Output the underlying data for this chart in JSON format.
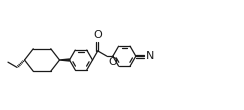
{
  "figsize": [
    2.44,
    1.1
  ],
  "dpi": 100,
  "bg_color": "#ffffff",
  "line_color": "#1a1a1a",
  "bond_lw": 0.9,
  "font_size": 7.0,
  "xlim": [
    0.0,
    2.44
  ],
  "ylim": [
    0.05,
    1.05
  ]
}
